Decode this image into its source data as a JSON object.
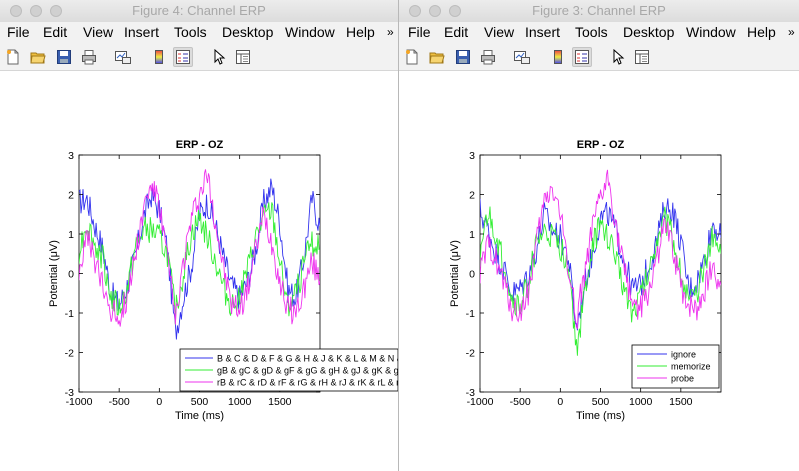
{
  "windows": [
    {
      "id": "left",
      "title": "Figure 4: Channel ERP",
      "menu": [
        "File",
        "Edit",
        "View",
        "Insert",
        "Tools",
        "Desktop",
        "Window",
        "Help"
      ],
      "menu_overflow": "»",
      "toolbar_icons": [
        "new-figure-icon",
        "open-file-icon",
        "save-icon",
        "print-icon",
        "link-plot-icon",
        "colorbar-icon",
        "legend-icon",
        "pointer-icon",
        "property-inspector-icon"
      ],
      "plot": {
        "title": "ERP - OZ",
        "ylabel": "Potential (μV)",
        "xlabel": "Time (ms)",
        "xticks": [
          "-1000",
          "-500",
          "0",
          "500",
          "1000",
          "1500"
        ],
        "yticks": [
          "3",
          "2",
          "1",
          "0",
          "-1",
          "-2",
          "-3"
        ],
        "legend": [
          "B & C & D & F & G & H & J & K & L & M & N &",
          "gB & gC & gD & gF & gG & gH & gJ & gK & gL",
          "rB & rC & rD & rF & rG & rH & rJ & rK & rL & rM"
        ]
      }
    },
    {
      "id": "right",
      "title": "Figure 3: Channel ERP",
      "menu": [
        "File",
        "Edit",
        "View",
        "Insert",
        "Tools",
        "Desktop",
        "Window",
        "Help"
      ],
      "menu_overflow": "»",
      "toolbar_icons": [
        "new-figure-icon",
        "open-file-icon",
        "save-icon",
        "print-icon",
        "link-plot-icon",
        "colorbar-icon",
        "legend-icon",
        "pointer-icon",
        "property-inspector-icon"
      ],
      "plot": {
        "title": "ERP - OZ",
        "ylabel": "Potential (μV)",
        "xlabel": "Time (ms)",
        "xticks": [
          "-1000",
          "-500",
          "0",
          "500",
          "1000",
          "1500"
        ],
        "yticks": [
          "3",
          "2",
          "1",
          "0",
          "-1",
          "-2",
          "-3"
        ],
        "legend": [
          "ignore",
          "memorize",
          "probe"
        ]
      }
    }
  ],
  "colors": {
    "series1": "#3333ee",
    "series2": "#33ee33",
    "series3": "#ee33ee"
  },
  "chart_data": [
    {
      "type": "line",
      "title": "ERP - OZ",
      "xlabel": "Time (ms)",
      "ylabel": "Potential (μV)",
      "xlim": [
        -1000,
        2000
      ],
      "ylim": [
        -3,
        3
      ],
      "x": [
        -1000,
        -900,
        -800,
        -700,
        -600,
        -500,
        -400,
        -300,
        -200,
        -100,
        0,
        100,
        200,
        300,
        400,
        500,
        600,
        700,
        800,
        900,
        1000,
        1100,
        1200,
        1300,
        1400,
        1500,
        1600,
        1700,
        1800,
        1900,
        2000
      ],
      "series": [
        {
          "name": "B & C & D & F & G & H & J & K & L & M & N &",
          "values": [
            1.8,
            1.9,
            1.2,
            0.6,
            -0.5,
            -0.8,
            -0.3,
            0.4,
            1.4,
            2.0,
            1.6,
            0.6,
            -1.5,
            -0.6,
            0.2,
            1.5,
            1.8,
            1.2,
            0.4,
            -0.3,
            -0.6,
            -0.2,
            0.6,
            1.8,
            2.2,
            1.3,
            -0.4,
            -0.6,
            0.4,
            1.9,
            1.2
          ]
        },
        {
          "name": "gB & gC & gD & gF & gG & gH & gJ & gK & gL",
          "values": [
            0.6,
            1.3,
            0.7,
            0.4,
            -0.6,
            -0.9,
            -0.4,
            0.6,
            1.1,
            1.1,
            0.9,
            0.5,
            -1.0,
            0.0,
            1.0,
            1.4,
            0.9,
            0.3,
            -0.4,
            -0.8,
            -0.5,
            0.1,
            0.9,
            1.4,
            1.6,
            0.3,
            -0.9,
            -0.5,
            0.2,
            0.8,
            0.6
          ]
        },
        {
          "name": "rB & rC & rD & rF & rG & rH & rJ & rK & rL & rM",
          "values": [
            0.1,
            0.9,
            0.3,
            -0.4,
            -0.9,
            -1.1,
            -0.6,
            0.5,
            1.6,
            2.3,
            1.7,
            0.4,
            -1.2,
            0.3,
            1.4,
            2.0,
            2.5,
            1.3,
            0.1,
            -0.8,
            -0.9,
            -0.4,
            0.6,
            1.5,
            0.8,
            -0.2,
            -0.9,
            -1.0,
            -0.4,
            0.3,
            -0.2
          ]
        }
      ]
    },
    {
      "type": "line",
      "title": "ERP - OZ",
      "xlabel": "Time (ms)",
      "ylabel": "Potential (μV)",
      "xlim": [
        -1000,
        2000
      ],
      "ylim": [
        -3,
        3
      ],
      "x": [
        -1000,
        -900,
        -800,
        -700,
        -600,
        -500,
        -400,
        -300,
        -200,
        -100,
        0,
        100,
        200,
        300,
        400,
        500,
        600,
        700,
        800,
        900,
        1000,
        1100,
        1200,
        1300,
        1400,
        1500,
        1600,
        1700,
        1800,
        1900,
        2000
      ],
      "series": [
        {
          "name": "ignore",
          "values": [
            1.6,
            1.1,
            0.5,
            0.1,
            -0.5,
            -0.4,
            0.0,
            0.6,
            1.5,
            1.1,
            0.9,
            0.4,
            -1.4,
            -0.3,
            0.5,
            1.4,
            1.5,
            1.0,
            0.3,
            -0.4,
            -0.3,
            0.2,
            0.8,
            1.7,
            1.6,
            0.8,
            -0.4,
            -0.2,
            0.4,
            1.3,
            0.9
          ]
        },
        {
          "name": "memorize",
          "values": [
            0.5,
            1.5,
            0.9,
            0.2,
            -0.7,
            -0.9,
            -0.2,
            0.7,
            1.0,
            0.9,
            0.6,
            0.3,
            -2.0,
            -0.6,
            0.7,
            1.2,
            0.9,
            0.3,
            -0.4,
            -1.0,
            -0.5,
            0.0,
            0.9,
            1.4,
            0.9,
            0.0,
            -0.7,
            -0.6,
            0.3,
            1.0,
            0.5
          ]
        },
        {
          "name": "probe",
          "values": [
            0.0,
            0.7,
            0.4,
            -0.3,
            -0.9,
            -1.0,
            -0.5,
            0.7,
            1.8,
            2.2,
            1.5,
            0.2,
            -1.2,
            0.0,
            1.1,
            1.9,
            2.4,
            1.1,
            0.0,
            -0.7,
            -0.9,
            -0.5,
            0.4,
            1.2,
            0.6,
            -0.3,
            -0.8,
            -0.9,
            -0.4,
            0.2,
            -0.3
          ]
        }
      ]
    }
  ]
}
